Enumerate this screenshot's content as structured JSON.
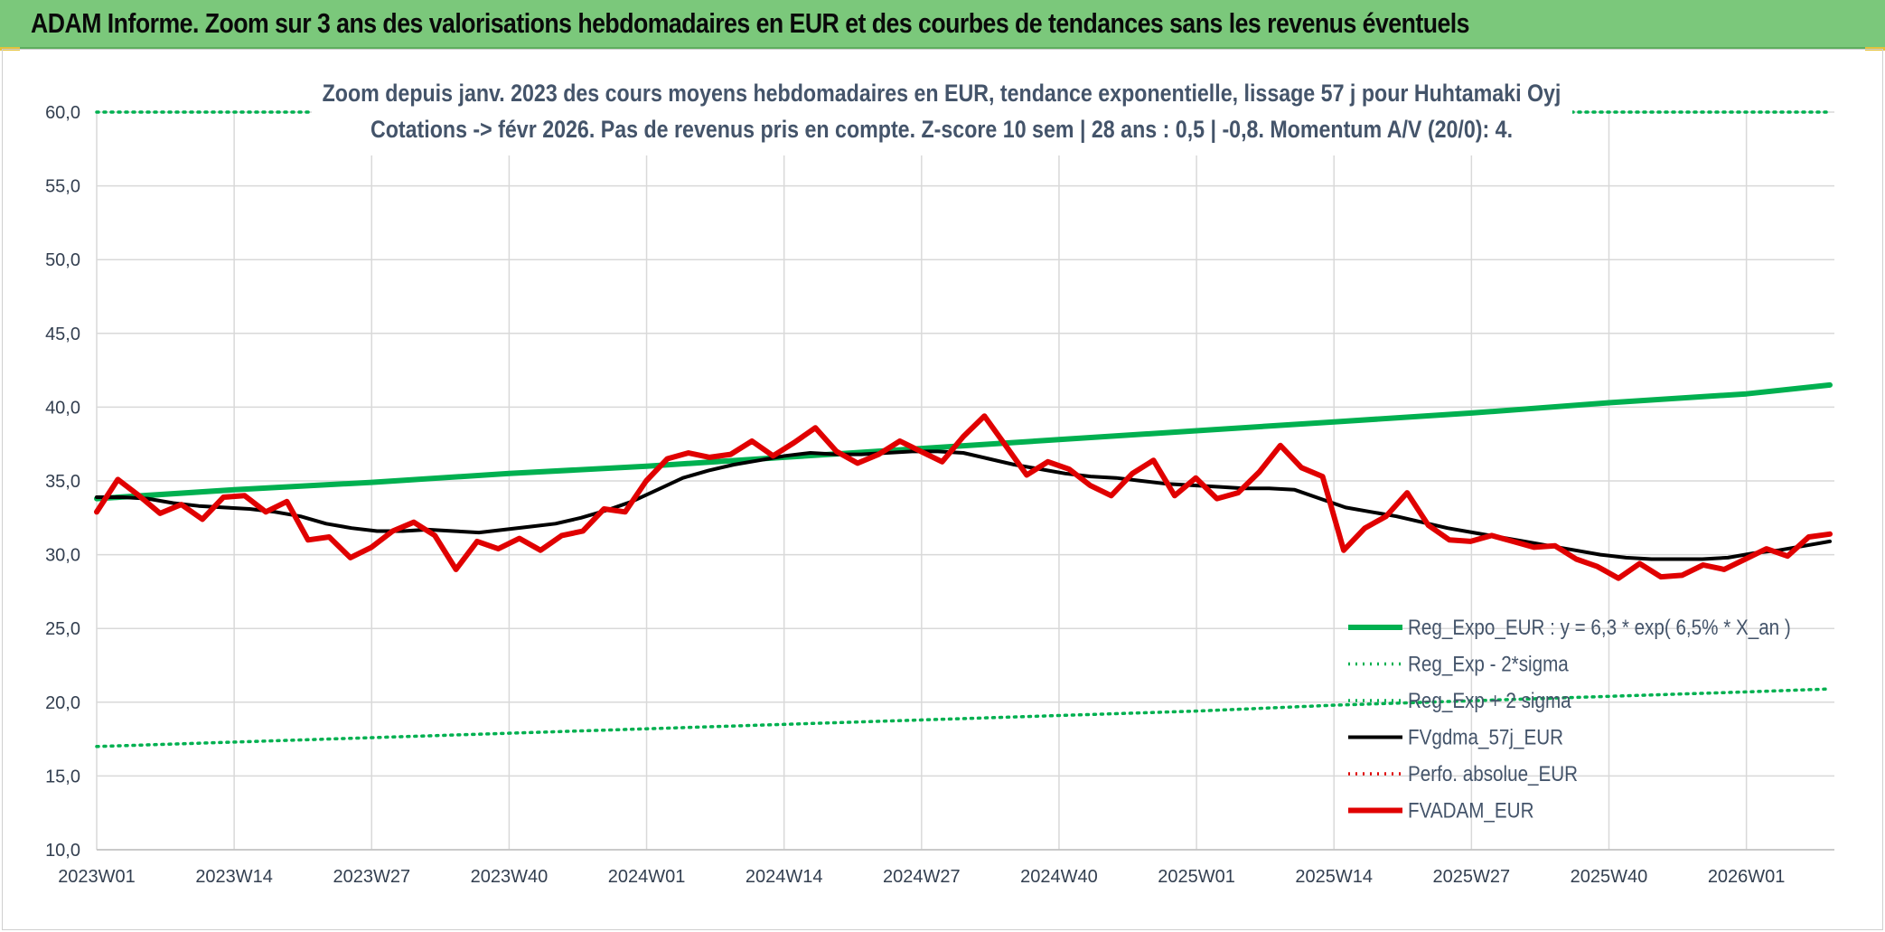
{
  "banner": {
    "title": "ADAM Informe. Zoom sur 3 ans des valorisations hebdomadaires en EUR et des courbes de tendances sans les revenus éventuels"
  },
  "colors": {
    "banner_bg": "#7bc87b",
    "trend": "#00b050",
    "price": "#e00000",
    "moving_avg": "#000000",
    "grid": "#d9d9d9"
  },
  "chart_data": {
    "type": "line",
    "title_line1": "Zoom depuis janv. 2023 des cours moyens hebdomadaires en EUR, tendance exponentielle, lissage 57 j pour Huhtamaki Oyj",
    "title_line2": "Cotations -> févr 2026. Pas de revenus pris en compte. Z-score 10 sem | 28 ans : 0,5 | -0,8. Momentum A/V (20/0): 4.",
    "ylim": [
      10,
      60
    ],
    "y_ticks": [
      "10,0",
      "15,0",
      "20,0",
      "25,0",
      "30,0",
      "35,0",
      "40,0",
      "45,0",
      "50,0",
      "55,0",
      "60,0"
    ],
    "x_ticks": [
      "2023W01",
      "2023W14",
      "2023W27",
      "2023W40",
      "2024W01",
      "2024W14",
      "2024W27",
      "2024W40",
      "2025W01",
      "2025W14",
      "2025W27",
      "2025W40",
      "2026W01"
    ],
    "grid": true,
    "legend_position": "bottom-right",
    "series": [
      {
        "name": "Reg_Expo_EUR : y = 6,3 * exp( 6,5% *  X_an )",
        "style": "thick-solid",
        "color": "#00b050",
        "values_at_ticks": [
          33.8,
          34.4,
          34.9,
          35.5,
          36.0,
          36.6,
          37.2,
          37.8,
          38.4,
          39.0,
          39.6,
          40.3,
          40.9
        ],
        "last": 41.5
      },
      {
        "name": "Reg_Exp - 2*sigma",
        "style": "dotted",
        "color": "#00b050",
        "values_at_ticks": [
          17.0,
          17.3,
          17.6,
          17.9,
          18.2,
          18.5,
          18.8,
          19.1,
          19.4,
          19.8,
          20.1,
          20.4,
          20.7
        ],
        "last": 20.9
      },
      {
        "name": "Reg_Exp + 2 sigma",
        "style": "dotted",
        "color": "#00b050",
        "values_at_ticks": [
          60.0,
          60.0,
          60.0,
          60.0,
          60.0,
          60.0,
          60.0,
          60.0,
          60.0,
          60.0,
          60.0,
          60.0,
          60.0
        ],
        "last": 60.0
      },
      {
        "name": "FVgdma_57j_EUR",
        "style": "solid",
        "color": "#000000",
        "values": [
          33.9,
          33.9,
          33.8,
          33.5,
          33.3,
          33.2,
          33.1,
          32.9,
          32.6,
          32.1,
          31.8,
          31.6,
          31.6,
          31.7,
          31.6,
          31.5,
          31.7,
          31.9,
          32.1,
          32.5,
          33.0,
          33.6,
          34.4,
          35.2,
          35.7,
          36.1,
          36.4,
          36.7,
          36.9,
          36.8,
          36.8,
          36.9,
          37.0,
          37.0,
          36.9,
          36.5,
          36.1,
          35.8,
          35.5,
          35.3,
          35.2,
          35.0,
          34.8,
          34.7,
          34.6,
          34.5,
          34.5,
          34.4,
          33.8,
          33.2,
          32.9,
          32.6,
          32.2,
          31.8,
          31.5,
          31.2,
          30.9,
          30.6,
          30.3,
          30.0,
          29.8,
          29.7,
          29.7,
          29.7,
          29.8,
          30.1,
          30.3,
          30.6,
          30.9
        ]
      },
      {
        "name": "Perfo. absolue_EUR",
        "style": "dotted",
        "color": "#e00000",
        "values": []
      },
      {
        "name": "FVADAM_EUR",
        "style": "thick-solid",
        "color": "#e00000",
        "values": [
          32.9,
          35.1,
          34.0,
          32.8,
          33.4,
          32.4,
          33.9,
          34.0,
          32.9,
          33.6,
          31.0,
          31.2,
          29.8,
          30.5,
          31.6,
          32.2,
          31.3,
          29.0,
          30.9,
          30.4,
          31.1,
          30.3,
          31.3,
          31.6,
          33.1,
          32.9,
          35.0,
          36.5,
          36.9,
          36.6,
          36.8,
          37.7,
          36.7,
          37.6,
          38.6,
          37.0,
          36.2,
          36.8,
          37.7,
          37.0,
          36.3,
          38.0,
          39.4,
          37.4,
          35.4,
          36.3,
          35.8,
          34.7,
          34.0,
          35.5,
          36.4,
          34.0,
          35.2,
          33.8,
          34.2,
          35.6,
          37.4,
          35.9,
          35.3,
          30.3,
          31.8,
          32.6,
          34.2,
          32.0,
          31.0,
          30.9,
          31.3,
          30.9,
          30.5,
          30.6,
          29.7,
          29.2,
          28.4,
          29.4,
          28.5,
          28.6,
          29.3,
          29.0,
          29.7,
          30.4,
          29.9,
          31.2,
          31.4
        ]
      }
    ]
  }
}
